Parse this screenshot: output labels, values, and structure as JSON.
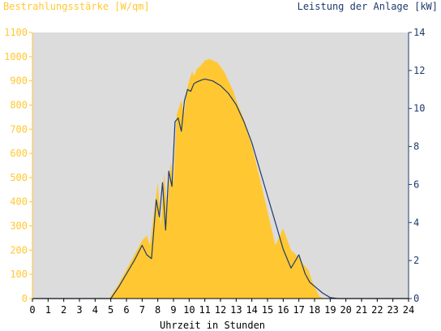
{
  "chart_data": {
    "type": "area",
    "left_axis": {
      "label": "Bestrahlungsstärke [W/qm]",
      "ylim": [
        0,
        1100
      ],
      "ticks": [
        0,
        100,
        200,
        300,
        400,
        500,
        600,
        700,
        800,
        900,
        1000,
        1100
      ]
    },
    "right_axis": {
      "label": "Leistung der Anlage [kW]",
      "ylim": [
        0,
        14
      ],
      "ticks": [
        0,
        2,
        4,
        6,
        8,
        10,
        12,
        14
      ]
    },
    "x_axis": {
      "label": "Uhrzeit in Stunden",
      "xlim": [
        0,
        24
      ],
      "ticks": [
        0,
        1,
        2,
        3,
        4,
        5,
        6,
        7,
        8,
        9,
        10,
        11,
        12,
        13,
        14,
        15,
        16,
        17,
        18,
        19,
        20,
        21,
        22,
        23,
        24
      ]
    },
    "grid": false,
    "colors": {
      "plot_bg": "#DCDCDC",
      "irradiance": "#FFC832",
      "power": "#1F3A6E"
    },
    "series": [
      {
        "axis": "left",
        "kind": "area",
        "x": [
          0,
          4.9,
          5,
          5.5,
          6,
          6.5,
          7,
          7.3,
          7.5,
          7.8,
          8,
          8.2,
          8.4,
          8.6,
          8.8,
          9,
          9.2,
          9.3,
          9.5,
          9.7,
          9.8,
          10,
          10.2,
          10.3,
          10.5,
          10.7,
          11,
          11.3,
          11.5,
          11.8,
          12,
          12.3,
          12.5,
          12.8,
          13,
          13.5,
          14,
          14.5,
          15,
          15.5,
          16,
          16.5,
          17,
          17.3,
          17.6,
          17.8,
          18,
          18.3,
          18.6,
          19,
          19.5,
          20,
          20.3,
          20.5,
          21,
          24
        ],
        "values": [
          0,
          0,
          10,
          60,
          120,
          180,
          240,
          260,
          220,
          380,
          480,
          300,
          520,
          360,
          560,
          480,
          760,
          780,
          820,
          760,
          850,
          900,
          940,
          920,
          950,
          960,
          985,
          990,
          985,
          975,
          960,
          930,
          900,
          860,
          820,
          740,
          630,
          500,
          360,
          220,
          290,
          200,
          170,
          140,
          120,
          80,
          50,
          10,
          0,
          0,
          0,
          0,
          0,
          0,
          0,
          0
        ]
      },
      {
        "axis": "right",
        "kind": "line",
        "x": [
          0,
          5,
          5.5,
          6,
          6.5,
          7,
          7.3,
          7.6,
          7.9,
          8.1,
          8.3,
          8.5,
          8.7,
          8.9,
          9.1,
          9.3,
          9.5,
          9.7,
          9.9,
          10.1,
          10.3,
          10.5,
          10.8,
          11,
          11.5,
          12,
          12.5,
          13,
          13.5,
          14,
          14.5,
          15,
          15.5,
          16,
          16.5,
          17,
          17.4,
          17.7,
          18,
          18.5,
          19,
          19.5,
          20,
          20.4,
          20.6,
          21,
          24
        ],
        "values": [
          0,
          0,
          0.6,
          1.3,
          2,
          2.8,
          2.3,
          2.1,
          5.2,
          4.3,
          6.1,
          3.6,
          6.7,
          5.9,
          9.3,
          9.5,
          8.8,
          10.4,
          11,
          10.9,
          11.3,
          11.4,
          11.5,
          11.55,
          11.45,
          11.2,
          10.8,
          10.2,
          9.3,
          8.2,
          6.8,
          5.4,
          4,
          2.6,
          1.6,
          2.3,
          1.3,
          0.85,
          0.65,
          0.3,
          0.05,
          0,
          0,
          0,
          0,
          0,
          0
        ]
      }
    ]
  }
}
